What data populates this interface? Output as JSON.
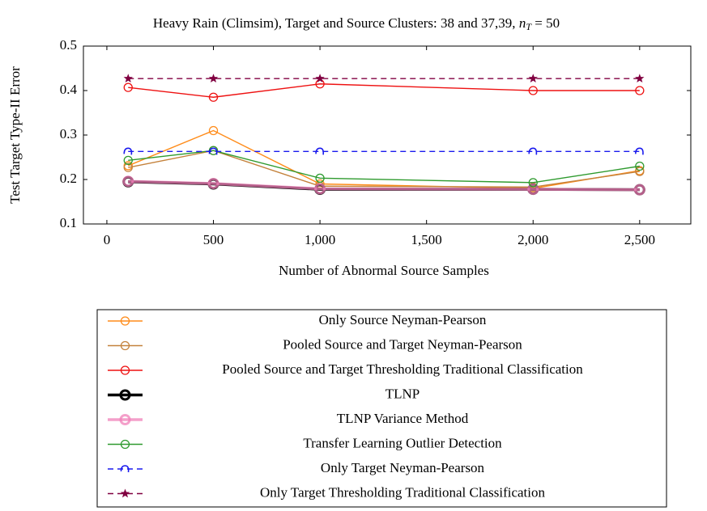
{
  "chart_data": {
    "type": "line",
    "title": "Heavy Rain (Climsim), Target and Source Clusters: 38 and 37,39,",
    "title_math": {
      "var": "n",
      "sub": "T",
      "rest": "= 50"
    },
    "x_label": "Number of Abnormal Source Samples",
    "y_label": "Test Target Type-II Error",
    "x": [
      100,
      500,
      1000,
      2000,
      2500
    ],
    "xlim": [
      -110,
      2740
    ],
    "xticks": [
      0,
      500,
      {
        "value": 1000,
        "label": "1,000"
      },
      {
        "value": 1500,
        "label": "1,500"
      },
      {
        "value": 2000,
        "label": "2,000"
      },
      {
        "value": 2500,
        "label": "2,500"
      }
    ],
    "ylim": [
      0.1,
      0.5
    ],
    "yticks": [
      0.1,
      0.2,
      0.3,
      0.4,
      0.5
    ],
    "grid": false,
    "series": [
      {
        "name": "Only Source Neyman-Pearson",
        "color": "#ff8c1a",
        "values": [
          0.231,
          0.31,
          0.19,
          0.18,
          0.22
        ]
      },
      {
        "name": "Pooled Source and Target Neyman-Pearson",
        "color": "#c4823c",
        "values": [
          0.227,
          0.265,
          0.185,
          0.183,
          0.218
        ]
      },
      {
        "name": "Pooled Source and Target Thresholding Traditional Classification",
        "color": "#ee1111",
        "values": [
          0.407,
          0.385,
          0.415,
          0.4,
          0.4
        ]
      },
      {
        "name": "TLNP",
        "color": "#000000",
        "values": [
          0.195,
          0.19,
          0.178,
          0.178,
          0.177
        ]
      },
      {
        "name": "TLNP Variance Method",
        "color": "#f080b8",
        "values": [
          0.196,
          0.191,
          0.179,
          0.178,
          0.177
        ]
      },
      {
        "name": "Transfer Learning Outlier Detection",
        "color": "#2e9a2e",
        "values": [
          0.243,
          0.265,
          0.203,
          0.193,
          0.23
        ]
      },
      {
        "name": "Only Target Neyman-Pearson",
        "color": "#1a1aee",
        "values": [
          0.263,
          0.263,
          0.263,
          0.263,
          0.263
        ]
      },
      {
        "name": "Only Target Thresholding Traditional Classification",
        "color": "#800040",
        "values": [
          0.427,
          0.427,
          0.427,
          0.427,
          0.427
        ]
      }
    ]
  }
}
